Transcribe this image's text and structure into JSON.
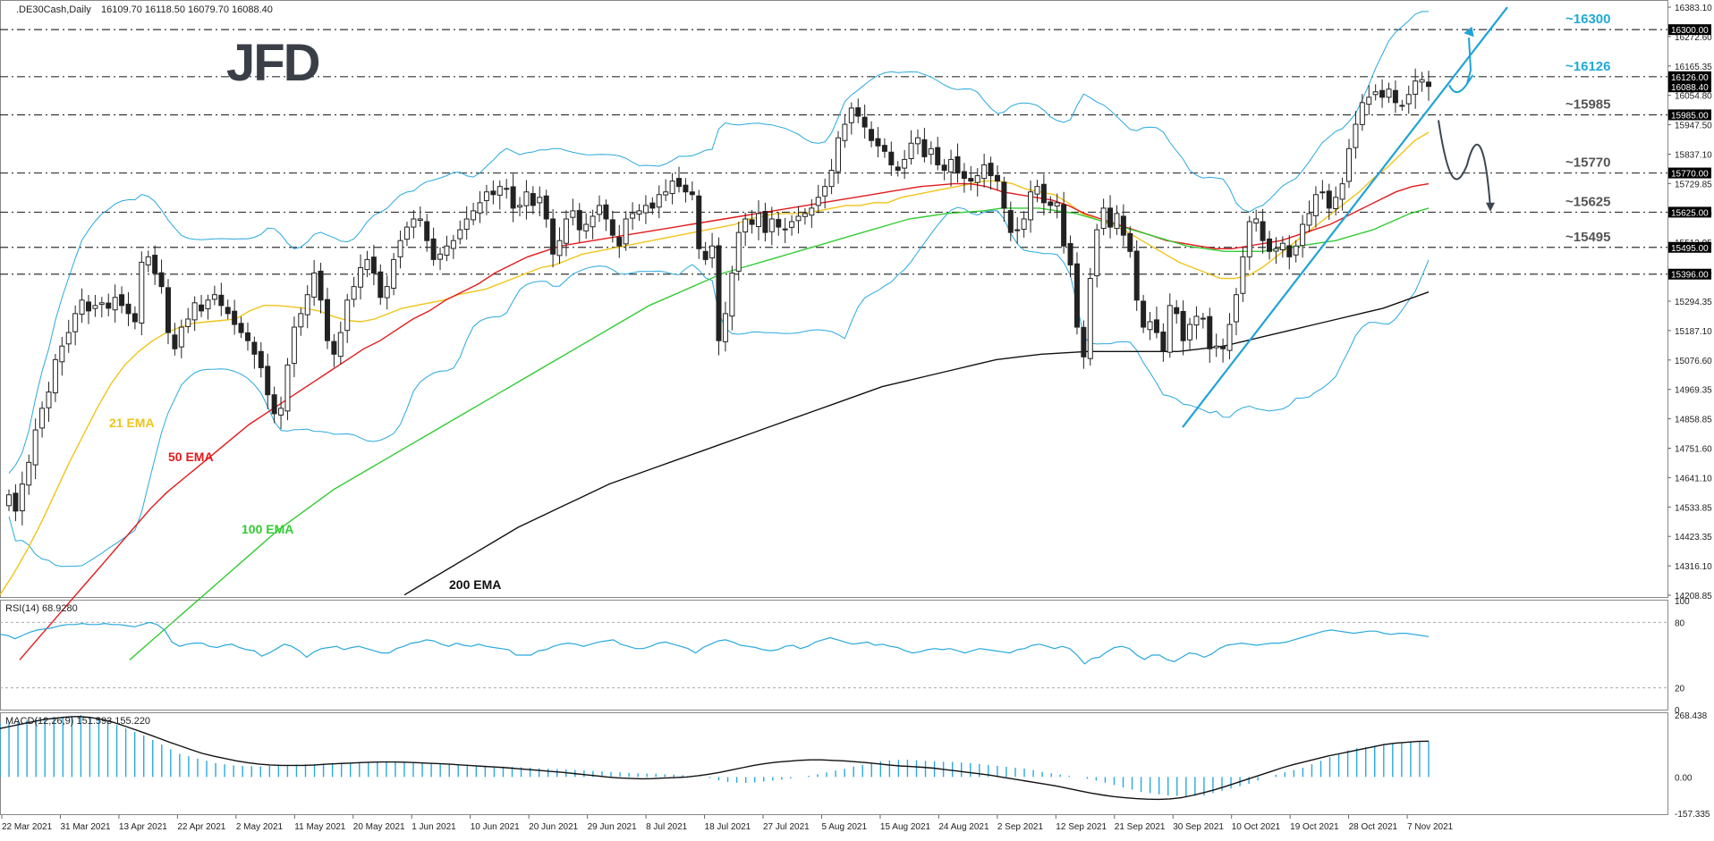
{
  "chart_data": {
    "type": "candlestick",
    "symbol": ".DE30Cash,Daily",
    "ohlc_readout": "16109.70 16118.50 16079.70 16088.40",
    "brand": "JFD",
    "price_scale": {
      "range": [
        14208.85,
        16383.1
      ],
      "ticks": [
        "16383.10",
        "16272.60",
        "16165.35",
        "16054.80",
        "15947.50",
        "15837.10",
        "15729.85",
        "15619.30",
        "15512.05",
        "15401.65",
        "15294.35",
        "15187.10",
        "15076.60",
        "14969.35",
        "14858.85",
        "14751.60",
        "14641.10",
        "14533.85",
        "14423.35",
        "14316.10",
        "14208.85"
      ]
    },
    "levels": [
      {
        "value": 16300,
        "label": "~16300",
        "box": "16300.00",
        "color": "#22a9d4"
      },
      {
        "value": 16126,
        "label": "~16126",
        "box": "16126.00",
        "color": "#22a9d4"
      },
      {
        "value": 15985,
        "label": "~15985",
        "box": "15985.00",
        "color": "#555555"
      },
      {
        "value": 15770,
        "label": "~15770",
        "box": "15770.00",
        "color": "#555555"
      },
      {
        "value": 15625,
        "label": "~15625",
        "box": "15625.00",
        "color": "#555555"
      },
      {
        "value": 15495,
        "label": "~15495",
        "box": "15495.00",
        "color": "#555555"
      },
      {
        "value": 15396,
        "label": "",
        "box": "15396.00",
        "color": "#555555"
      }
    ],
    "last_price_box": "16088.40",
    "ema_labels": [
      {
        "text": "21 EMA",
        "color": "#f0c419"
      },
      {
        "text": "50 EMA",
        "color": "#e31a1c"
      },
      {
        "text": "100 EMA",
        "color": "#33cc33"
      },
      {
        "text": "200 EMA",
        "color": "#111111"
      }
    ],
    "x_labels": [
      "22 Mar 2021",
      "31 Mar 2021",
      "13 Apr 2021",
      "22 Apr 2021",
      "2 May 2021",
      "11 May 2021",
      "20 May 2021",
      "1 Jun 2021",
      "10 Jun 2021",
      "20 Jun 2021",
      "29 Jun 2021",
      "8 Jul 2021",
      "18 Jul 2021",
      "27 Jul 2021",
      "5 Aug 2021",
      "15 Aug 2021",
      "24 Aug 2021",
      "2 Sep 2021",
      "12 Sep 2021",
      "21 Sep 2021",
      "30 Sep 2021",
      "10 Oct 2021",
      "19 Oct 2021",
      "28 Oct 2021",
      "7 Nov 2021"
    ],
    "close_series": [
      14580,
      14520,
      14620,
      14700,
      14820,
      14900,
      14960,
      15080,
      15130,
      15180,
      15250,
      15300,
      15260,
      15280,
      15290,
      15270,
      15310,
      15280,
      15250,
      15220,
      15440,
      15460,
      15400,
      15350,
      15180,
      15120,
      15200,
      15230,
      15290,
      15260,
      15300,
      15320,
      15280,
      15250,
      15210,
      15180,
      15150,
      15100,
      15050,
      14950,
      14880,
      14900,
      15060,
      15200,
      15250,
      15320,
      15400,
      15300,
      15150,
      15100,
      15180,
      15300,
      15350,
      15420,
      15450,
      15400,
      15310,
      15350,
      15450,
      15520,
      15570,
      15600,
      15600,
      15520,
      15450,
      15470,
      15500,
      15520,
      15560,
      15600,
      15630,
      15660,
      15700,
      15690,
      15720,
      15710,
      15640,
      15650,
      15700,
      15650,
      15680,
      15600,
      15470,
      15520,
      15600,
      15630,
      15560,
      15580,
      15610,
      15650,
      15600,
      15540,
      15500,
      15600,
      15620,
      15630,
      15650,
      15640,
      15690,
      15700,
      15740,
      15720,
      15700,
      15690,
      15490,
      15450,
      15500,
      15150,
      15250,
      15400,
      15550,
      15600,
      15580,
      15620,
      15550,
      15600,
      15570,
      15560,
      15590,
      15610,
      15620,
      15640,
      15680,
      15720,
      15780,
      15900,
      15950,
      16010,
      15980,
      15940,
      15890,
      15870,
      15850,
      15800,
      15780,
      15820,
      15880,
      15900,
      15830,
      15860,
      15800,
      15780,
      15820,
      15770,
      15750,
      15740,
      15760,
      15800,
      15760,
      15740,
      15640,
      15550,
      15560,
      15600,
      15700,
      15720,
      15660,
      15650,
      15660,
      15500,
      15430,
      15200,
      15090,
      15380,
      15560,
      15640,
      15570,
      15620,
      15540,
      15480,
      15300,
      15200,
      15220,
      15180,
      15110,
      15280,
      15250,
      15150,
      15210,
      15240,
      15230,
      15120,
      15130,
      15120,
      15210,
      15320,
      15460,
      15590,
      15600,
      15520,
      15480,
      15490,
      15510,
      15460,
      15500,
      15580,
      15620,
      15690,
      15700,
      15640,
      15680,
      15730,
      15860,
      15950,
      16030,
      16050,
      16070,
      16050,
      16080,
      16030,
      16020,
      16060,
      16110,
      16115,
      16090
    ],
    "ema21_series": [
      14210,
      14290,
      14380,
      14480,
      14590,
      14700,
      14800,
      14900,
      14990,
      15060,
      15110,
      15150,
      15180,
      15200,
      15215,
      15220,
      15225,
      15230,
      15260,
      15280,
      15280,
      15275,
      15270,
      15260,
      15240,
      15225,
      15220,
      15230,
      15250,
      15270,
      15280,
      15290,
      15300,
      15320,
      15330,
      15340,
      15360,
      15380,
      15400,
      15420,
      15430,
      15450,
      15470,
      15480,
      15490,
      15500,
      15510,
      15520,
      15530,
      15540,
      15550,
      15560,
      15570,
      15580,
      15600,
      15610,
      15620,
      15620,
      15620,
      15630,
      15640,
      15650,
      15650,
      15660,
      15660,
      15680,
      15690,
      15700,
      15710,
      15720,
      15730,
      15740,
      15740,
      15730,
      15710,
      15700,
      15690,
      15660,
      15620,
      15600,
      15580,
      15560,
      15530,
      15500,
      15470,
      15440,
      15420,
      15400,
      15380,
      15380,
      15390,
      15420,
      15460,
      15500,
      15540,
      15580,
      15620,
      15660,
      15700,
      15750,
      15790,
      15840,
      15890,
      15920
    ],
    "ema50_series": [
      13970,
      14040,
      14110,
      14180,
      14250,
      14320,
      14390,
      14460,
      14530,
      14590,
      14640,
      14690,
      14740,
      14790,
      14840,
      14880,
      14920,
      14960,
      15000,
      15040,
      15080,
      15120,
      15150,
      15190,
      15230,
      15260,
      15300,
      15330,
      15360,
      15400,
      15430,
      15460,
      15480,
      15500,
      15510,
      15520,
      15530,
      15540,
      15550,
      15560,
      15570,
      15580,
      15590,
      15600,
      15610,
      15620,
      15630,
      15640,
      15650,
      15660,
      15670,
      15680,
      15690,
      15700,
      15710,
      15720,
      15725,
      15730,
      15730,
      15720,
      15700,
      15690,
      15680,
      15670,
      15650,
      15620,
      15600,
      15580,
      15560,
      15540,
      15520,
      15510,
      15500,
      15490,
      15490,
      15500,
      15510,
      15520,
      15540,
      15560,
      15580,
      15610,
      15640,
      15670,
      15700,
      15720,
      15730
    ],
    "ema100_series": [
      13970,
      14030,
      14090,
      14150,
      14210,
      14270,
      14330,
      14390,
      14450,
      14500,
      14550,
      14600,
      14640,
      14680,
      14720,
      14760,
      14800,
      14840,
      14880,
      14920,
      14960,
      15000,
      15040,
      15080,
      15120,
      15160,
      15200,
      15240,
      15280,
      15310,
      15340,
      15370,
      15400,
      15420,
      15440,
      15460,
      15480,
      15500,
      15520,
      15540,
      15560,
      15580,
      15600,
      15610,
      15620,
      15625,
      15630,
      15640,
      15640,
      15640,
      15630,
      15620,
      15600,
      15580,
      15560,
      15540,
      15520,
      15500,
      15490,
      15480,
      15480,
      15480,
      15490,
      15500,
      15510,
      15520,
      15540,
      15560,
      15590,
      15620,
      15640
    ],
    "ema200_series": [
      14210,
      14260,
      14310,
      14360,
      14410,
      14460,
      14500,
      14540,
      14580,
      14620,
      14650,
      14680,
      14710,
      14740,
      14770,
      14800,
      14830,
      14860,
      14890,
      14920,
      14950,
      14980,
      15000,
      15020,
      15040,
      15060,
      15080,
      15090,
      15100,
      15105,
      15110,
      15110,
      15110,
      15110,
      15110,
      15120,
      15130,
      15150,
      15170,
      15190,
      15210,
      15230,
      15250,
      15270,
      15300,
      15330
    ]
  },
  "rsi": {
    "label": "RSI(14) 68.9280",
    "ticks": [
      "100",
      "80",
      "20",
      "0"
    ],
    "levels": [
      80,
      20
    ],
    "values": [
      69,
      68,
      65,
      68,
      71,
      73,
      74,
      75,
      77,
      78,
      78,
      79,
      78,
      78,
      79,
      78,
      78,
      77,
      76,
      78,
      80,
      78,
      73,
      62,
      58,
      60,
      61,
      61,
      58,
      57,
      59,
      60,
      57,
      55,
      54,
      49,
      52,
      56,
      60,
      58,
      54,
      48,
      53,
      56,
      57,
      58,
      55,
      57,
      58,
      56,
      54,
      52,
      52,
      56,
      58,
      61,
      62,
      64,
      63,
      60,
      58,
      61,
      59,
      58,
      60,
      58,
      57,
      56,
      55,
      50,
      50,
      50,
      54,
      55,
      58,
      60,
      61,
      60,
      58,
      60,
      62,
      63,
      64,
      60,
      58,
      56,
      56,
      58,
      61,
      62,
      60,
      58,
      56,
      52,
      57,
      60,
      63,
      64,
      62,
      59,
      58,
      57,
      55,
      54,
      55,
      58,
      59,
      56,
      58,
      62,
      64,
      66,
      64,
      62,
      60,
      61,
      62,
      59,
      60,
      58,
      57,
      54,
      52,
      53,
      55,
      56,
      55,
      56,
      54,
      52,
      54,
      56,
      55,
      54,
      53,
      52,
      55,
      56,
      59,
      60,
      58,
      56,
      58,
      56,
      50,
      42,
      47,
      48,
      53,
      57,
      58,
      56,
      50,
      46,
      50,
      50,
      46,
      44,
      48,
      52,
      51,
      48,
      51,
      56,
      59,
      60,
      61,
      60,
      59,
      60,
      61,
      61,
      62,
      64,
      66,
      68,
      70,
      72,
      73,
      72,
      71,
      70,
      71,
      72,
      72,
      70,
      69,
      70,
      70,
      69,
      68,
      67
    ]
  },
  "macd": {
    "label": "MACD(12,26,9) 151.593 155.220",
    "ticks": [
      "268.438",
      "0.00",
      "-157.335"
    ],
    "range": [
      -157.335,
      268.438
    ],
    "histogram": [
      230,
      235,
      240,
      245,
      250,
      255,
      258,
      262,
      265,
      268,
      260,
      250,
      240,
      225,
      210,
      195,
      180,
      160,
      140,
      120,
      100,
      90,
      80,
      70,
      60,
      55,
      50,
      48,
      47,
      46,
      48,
      50,
      52,
      54,
      55,
      56,
      58,
      60,
      60,
      62,
      62,
      63,
      64,
      64,
      65,
      65,
      64,
      62,
      60,
      58,
      56,
      54,
      52,
      50,
      48,
      46,
      45,
      44,
      42,
      40,
      38,
      36,
      34,
      32,
      30,
      28,
      26,
      24,
      22,
      20,
      18,
      16,
      15,
      14,
      12,
      10,
      8,
      5,
      2,
      -5,
      -15,
      -22,
      -25,
      -26,
      -24,
      -20,
      -16,
      -12,
      -6,
      0,
      5,
      12,
      20,
      28,
      35,
      45,
      52,
      60,
      68,
      72,
      74,
      75,
      72,
      70,
      68,
      66,
      65,
      62,
      60,
      56,
      52,
      48,
      44,
      40,
      36,
      30,
      22,
      16,
      10,
      5,
      0,
      -8,
      -16,
      -25,
      -35,
      -45,
      -55,
      -65,
      -70,
      -75,
      -80,
      -82,
      -84,
      -82,
      -80,
      -70,
      -60,
      -50,
      -40,
      -30,
      -15,
      0,
      10,
      20,
      30,
      40,
      55,
      70,
      85,
      100,
      115,
      125,
      130,
      135,
      140,
      145,
      148,
      150,
      152,
      155
    ],
    "signal": [
      210,
      220,
      230,
      240,
      250,
      255,
      260,
      262,
      258,
      250,
      238,
      222,
      205,
      188,
      170,
      152,
      135,
      118,
      102,
      90,
      80,
      70,
      62,
      56,
      52,
      50,
      50,
      50,
      52,
      55,
      58,
      60,
      62,
      64,
      65,
      65,
      64,
      62,
      60,
      58,
      55,
      52,
      49,
      46,
      43,
      40,
      36,
      32,
      28,
      24,
      20,
      15,
      10,
      5,
      0,
      -4,
      -6,
      -8,
      -7,
      -5,
      -3,
      0,
      5,
      12,
      20,
      30,
      40,
      50,
      58,
      64,
      68,
      72,
      74,
      74,
      72,
      70,
      66,
      62,
      57,
      52,
      48,
      45,
      42,
      38,
      32,
      26,
      20,
      14,
      8,
      0,
      -8,
      -16,
      -24,
      -32,
      -40,
      -50,
      -60,
      -70,
      -78,
      -85,
      -90,
      -94,
      -96,
      -97,
      -95,
      -90,
      -80,
      -68,
      -55,
      -40,
      -24,
      -8,
      8,
      24,
      40,
      54,
      66,
      78,
      90,
      100,
      110,
      120,
      130,
      140,
      146,
      150,
      154,
      155
    ]
  }
}
